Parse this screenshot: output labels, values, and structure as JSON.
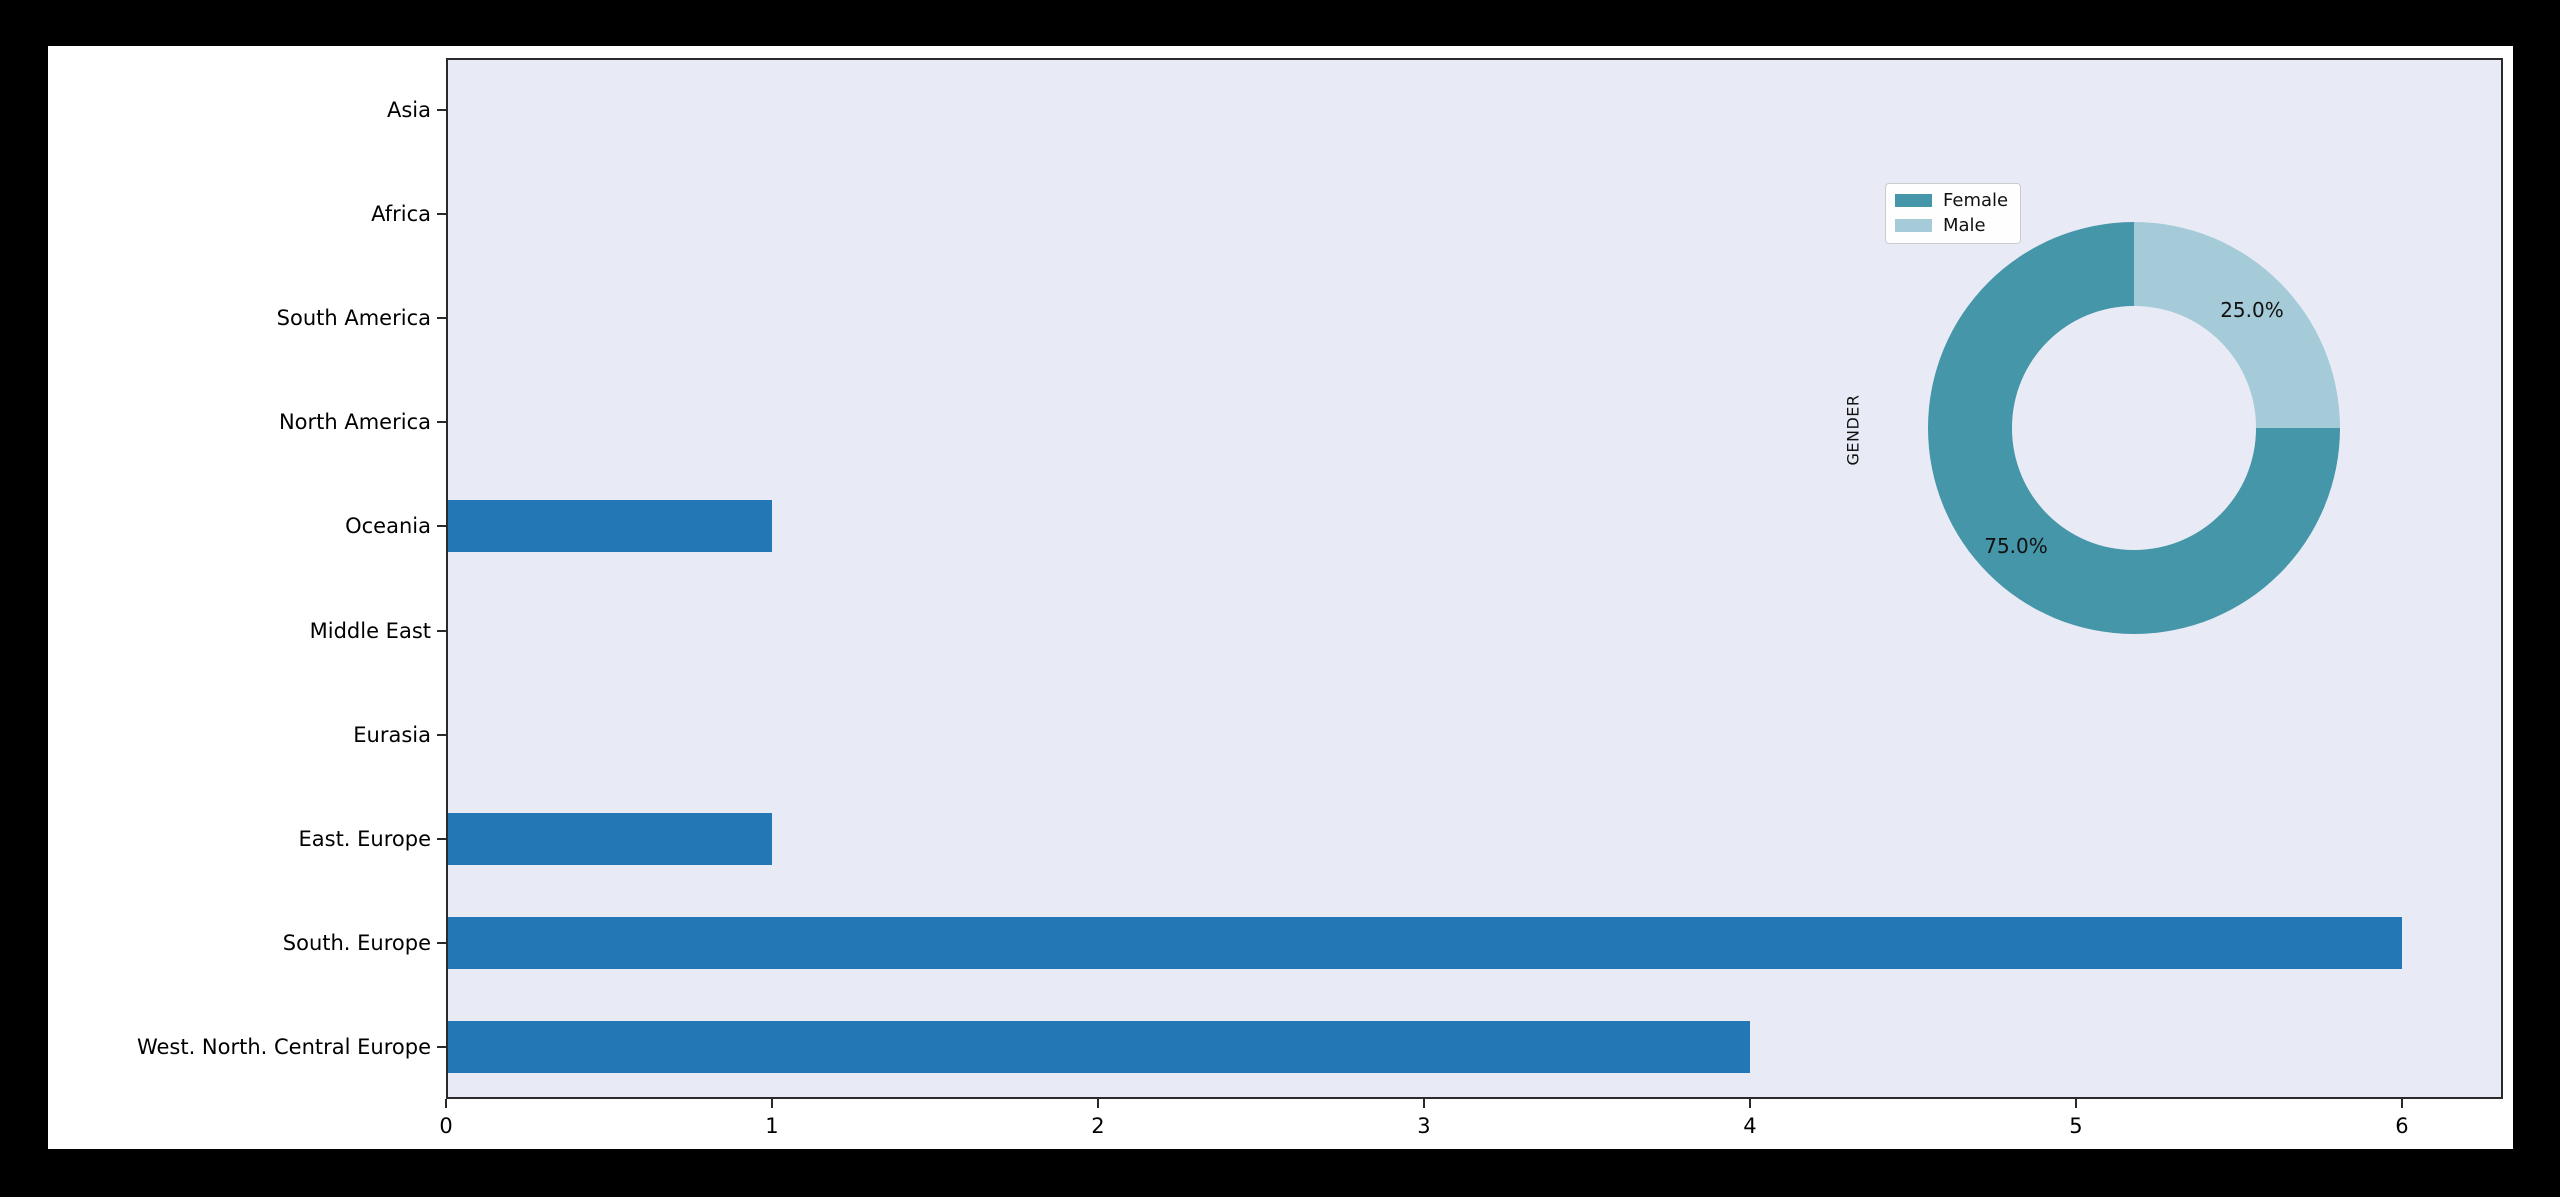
{
  "window": {
    "canvas_background": "#000000",
    "figure_background": "#ffffff"
  },
  "chart_data": [
    {
      "type": "bar",
      "orientation": "horizontal",
      "title": "",
      "xlabel": "",
      "ylabel": "",
      "categories_top_to_bottom": [
        "Asia",
        "Africa",
        "South America",
        "North America",
        "Oceania",
        "Middle East",
        "Eurasia",
        "East. Europe",
        "South. Europe",
        "West. North. Central Europe"
      ],
      "values": [
        0,
        0,
        0,
        0,
        1,
        0,
        0,
        1,
        6,
        4
      ],
      "xticks": [
        "0",
        "1",
        "2",
        "3",
        "4",
        "5",
        "6"
      ],
      "xlim": [
        0,
        6.31
      ],
      "grid": false,
      "bar_color": "#2277b4",
      "plot_background": "#e8ebf5",
      "spine_color": "#2a2a2a",
      "tick_label_color": "#000000"
    },
    {
      "type": "pie",
      "subtype": "donut",
      "axis_label": "GENDER",
      "series": [
        {
          "name": "Female",
          "value": 75.0,
          "label": "75.0%",
          "color": "#4496a8"
        },
        {
          "name": "Male",
          "value": 25.0,
          "label": "25.0%",
          "color": "#a5cbd9"
        }
      ],
      "draw_order_clockwise_from_top": [
        "Male",
        "Female"
      ],
      "inner_radius_ratio": 0.59,
      "legend": {
        "position": "upper left",
        "entries": [
          "Female",
          "Male"
        ]
      },
      "label_color": "#111111"
    }
  ]
}
